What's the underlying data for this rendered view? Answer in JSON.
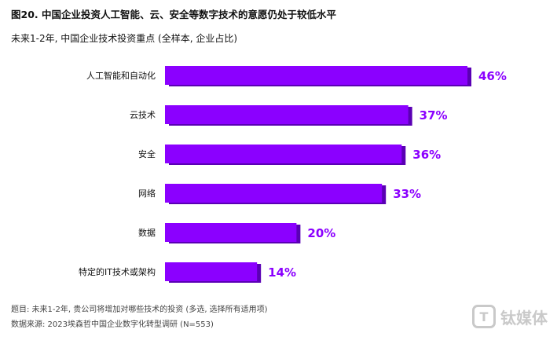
{
  "figure": {
    "title": "图20. 中国企业投资人工智能、云、安全等数字技术的意愿仍处于较低水平",
    "subtitle": "未来1-2年, 中国企业技术投资重点 (全样本, 企业占比)"
  },
  "chart_data": {
    "type": "bar",
    "orientation": "horizontal",
    "categories": [
      "人工智能和自动化",
      "云技术",
      "安全",
      "网络",
      "数据",
      "特定的IT技术或架构"
    ],
    "values": [
      46,
      37,
      36,
      33,
      20,
      14
    ],
    "value_labels": [
      "46%",
      "37%",
      "36%",
      "33%",
      "20%",
      "14%"
    ],
    "xlim": [
      0,
      50
    ],
    "grid": false,
    "bar_color": "#8b00ff",
    "bar_shadow_color": "#5a00b4",
    "label_color": "#8b00ff"
  },
  "footnotes": {
    "question": "题目: 未来1-2年, 贵公司将增加对哪些技术的投资 (多选, 选择所有适用项)",
    "source": "数据来源: 2023埃森哲中国企业数字化转型调研 (N=553)"
  },
  "watermark": {
    "logo_glyph": "T",
    "text": "钛媒体"
  }
}
